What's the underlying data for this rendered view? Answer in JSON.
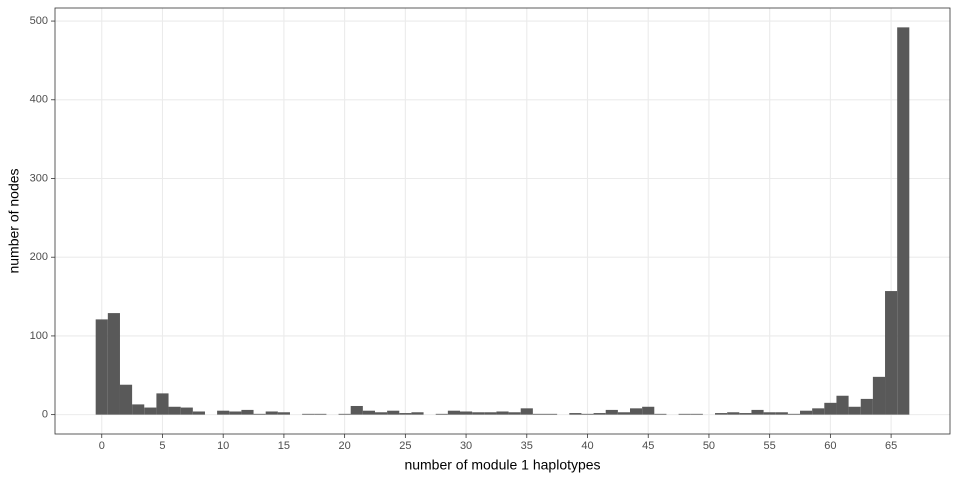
{
  "chart_data": {
    "type": "histogram",
    "x_label": "number of module 1 haplotypes",
    "y_label": "number of nodes",
    "bins": [
      -0.5,
      0.5,
      1.5,
      2.5,
      3.5,
      4.5,
      5.5,
      6.5,
      7.5,
      8.5,
      9.5,
      10.5,
      11.5,
      12.5,
      13.5,
      14.5,
      15.5,
      16.5,
      17.5,
      18.5,
      19.5,
      20.5,
      21.5,
      22.5,
      23.5,
      24.5,
      25.5,
      26.5,
      27.5,
      28.5,
      29.5,
      30.5,
      31.5,
      32.5,
      33.5,
      34.5,
      35.5,
      36.5,
      37.5,
      38.5,
      39.5,
      40.5,
      41.5,
      42.5,
      43.5,
      44.5,
      45.5,
      46.5,
      47.5,
      48.5,
      49.5,
      50.5,
      51.5,
      52.5,
      53.5,
      54.5,
      55.5,
      56.5,
      57.5,
      58.5,
      59.5,
      60.5,
      61.5,
      62.5,
      63.5,
      64.5,
      65.5,
      66.5
    ],
    "values": [
      121,
      129,
      38,
      13,
      9,
      27,
      10,
      9,
      4,
      0,
      5,
      4,
      6,
      1,
      4,
      3,
      0,
      1,
      1,
      0,
      1,
      11,
      5,
      3,
      5,
      2,
      3,
      0,
      1,
      5,
      4,
      3,
      3,
      4,
      3,
      8,
      1,
      1,
      0,
      2,
      1,
      2,
      6,
      3,
      8,
      10,
      1,
      0,
      1,
      1,
      0,
      2,
      3,
      2,
      6,
      3,
      3,
      1,
      5,
      8,
      15,
      24,
      10,
      20,
      48,
      157,
      492
    ],
    "color": "#595959",
    "xlim": [
      -3.85,
      69.85
    ],
    "xticks": [
      0,
      5,
      10,
      15,
      20,
      25,
      30,
      35,
      40,
      45,
      50,
      55,
      60,
      65
    ],
    "ylim": [
      -24.6,
      516.6
    ],
    "yticks": [
      0,
      100,
      200,
      300,
      400,
      500
    ],
    "grid": true
  }
}
